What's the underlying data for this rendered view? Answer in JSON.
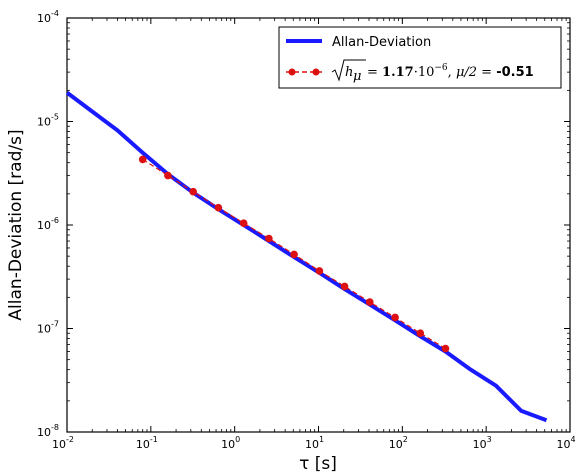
{
  "chart_data": {
    "type": "line",
    "title": "",
    "xlabel": "τ [s]",
    "ylabel": "Allan-Deviation [rad/s]",
    "xscale": "log",
    "yscale": "log",
    "xlim": [
      0.01,
      10000
    ],
    "ylim": [
      1e-08,
      0.0001
    ],
    "grid": false,
    "legend_position": "top-right",
    "x_ticks": [
      {
        "value": 0.01,
        "base": "10",
        "exp": "-2"
      },
      {
        "value": 0.1,
        "base": "10",
        "exp": "-1"
      },
      {
        "value": 1,
        "base": "10",
        "exp": "0"
      },
      {
        "value": 10,
        "base": "10",
        "exp": "1"
      },
      {
        "value": 100,
        "base": "10",
        "exp": "2"
      },
      {
        "value": 1000,
        "base": "10",
        "exp": "3"
      },
      {
        "value": 10000,
        "base": "10",
        "exp": "4"
      }
    ],
    "y_ticks": [
      {
        "value": 1e-08,
        "base": "10",
        "exp": "-8"
      },
      {
        "value": 1e-07,
        "base": "10",
        "exp": "-7"
      },
      {
        "value": 1e-06,
        "base": "10",
        "exp": "-6"
      },
      {
        "value": 1e-05,
        "base": "10",
        "exp": "-5"
      },
      {
        "value": 0.0001,
        "base": "10",
        "exp": "-4"
      }
    ],
    "series": [
      {
        "name": "Allan-Deviation",
        "style": "line",
        "color": "#1a1aff",
        "x": [
          0.01,
          0.02,
          0.04,
          0.08,
          0.16,
          0.32,
          0.64,
          1.28,
          2.56,
          5.12,
          10.24,
          20.48,
          40.96,
          81.92,
          163.84,
          327.68,
          655.36,
          1310.72,
          2621.44,
          5242.88
        ],
        "y": [
          1.9e-05,
          1.25e-05,
          8.2e-06,
          5e-06,
          3.1e-06,
          2.05e-06,
          1.42e-06,
          1e-06,
          7e-07,
          4.9e-07,
          3.45e-07,
          2.4e-07,
          1.7e-07,
          1.2e-07,
          8.4e-08,
          6e-08,
          4e-08,
          2.8e-08,
          1.6e-08,
          1.3e-08
        ]
      },
      {
        "name": "sqrt(h_mu) = 1.17·10^-6, mu/2 = -0.51",
        "style": "dashed-markers",
        "color": "#dd1111",
        "x": [
          0.08,
          0.16,
          0.32,
          0.64,
          1.28,
          2.56,
          5.12,
          10.24,
          20.48,
          40.96,
          81.92,
          163.84,
          327.68
        ],
        "y": [
          4.3e-06,
          3e-06,
          2.1e-06,
          1.47e-06,
          1.04e-06,
          7.4e-07,
          5.2e-07,
          3.6e-07,
          2.55e-07,
          1.8e-07,
          1.28e-07,
          9e-08,
          6.4e-08
        ]
      }
    ],
    "legend": {
      "entry1_label": "Allan-Deviation",
      "entry2": {
        "coef_symbol": "h",
        "coef_sub": "μ",
        "eq": " = ",
        "value": "1.17",
        "times": "·10",
        "exp": "−6",
        "sep": ", ",
        "mu_expr": "μ/2",
        "eq2": " = ",
        "value2": "-0.51"
      }
    }
  }
}
